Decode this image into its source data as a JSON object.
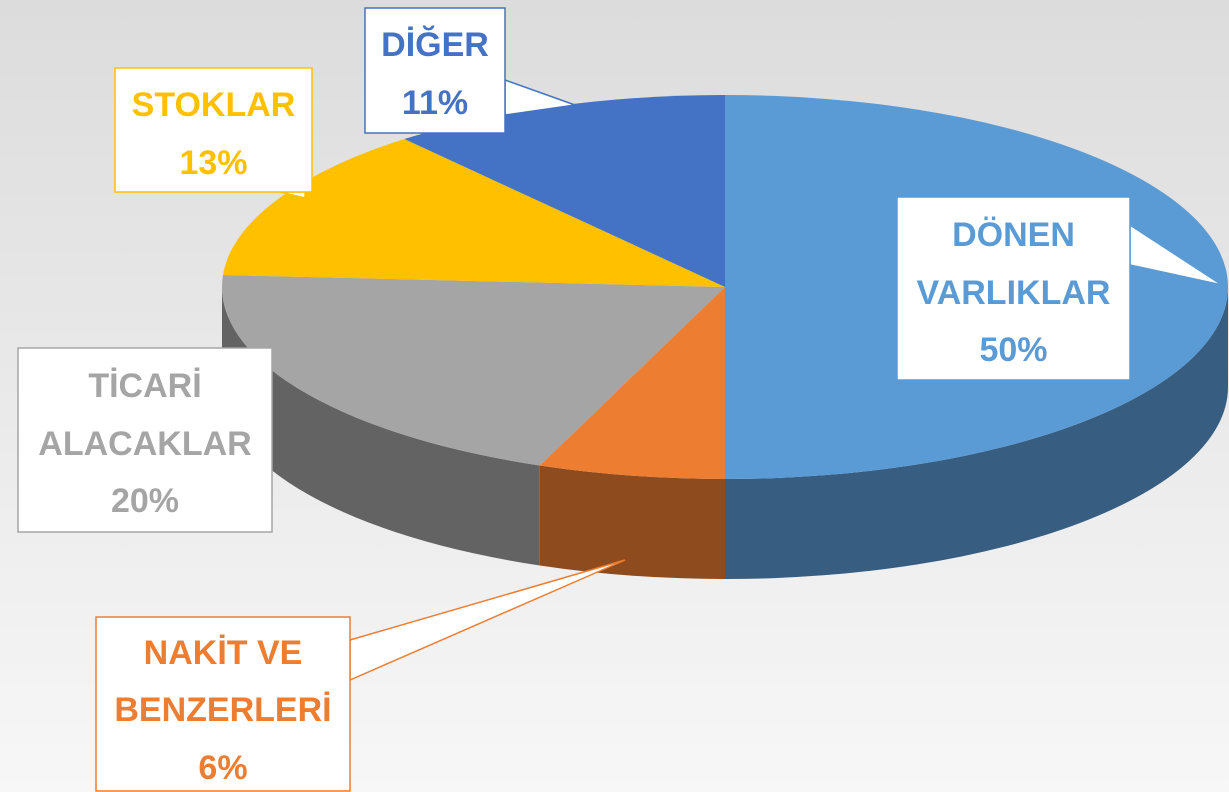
{
  "chart_data": {
    "type": "pie",
    "categories": [
      "DÖNEN VARLIKLAR",
      "NAKİT VE BENZERLERİ",
      "TİCARİ ALACAKLAR",
      "STOKLAR",
      "DİĞER"
    ],
    "values": [
      50,
      6,
      20,
      13,
      11
    ],
    "value_labels": [
      "50%",
      "6%",
      "20%",
      "13%",
      "11%"
    ],
    "colors": [
      "#5b9bd5",
      "#ed7d31",
      "#a5a5a5",
      "#ffc000",
      "#4472c4"
    ]
  }
}
